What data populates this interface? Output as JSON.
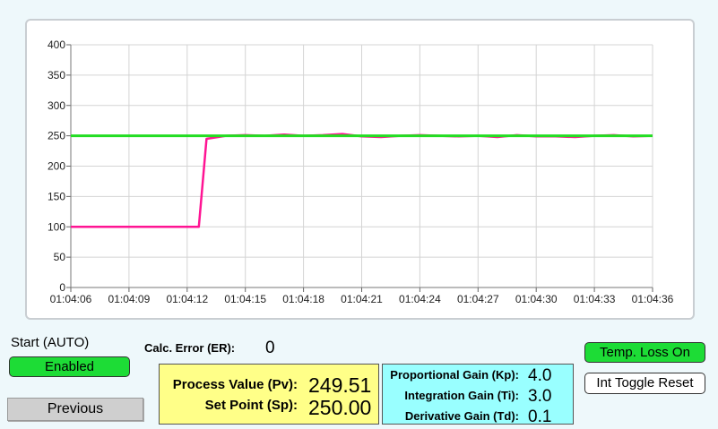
{
  "chart_data": {
    "type": "line",
    "ylim": [
      0,
      400
    ],
    "yticks": [
      "0",
      "50",
      "100",
      "150",
      "200",
      "250",
      "300",
      "350",
      "400"
    ],
    "xticks": [
      "01:04:06",
      "01:04:09",
      "01:04:12",
      "01:04:15",
      "01:04:18",
      "01:04:21",
      "01:04:24",
      "01:04:27",
      "01:04:30",
      "01:04:33",
      "01:04:36"
    ],
    "grid": true,
    "series": [
      {
        "color": "#ff1493",
        "x": [
          0,
          1,
          2,
          3,
          4,
          5,
          6,
          6.6,
          7,
          8,
          9,
          10,
          11,
          12,
          13,
          14,
          15,
          16,
          17,
          18,
          19,
          20,
          21,
          22,
          23,
          24,
          25,
          26,
          27,
          28,
          29,
          30
        ],
        "y": [
          100,
          100,
          100,
          100,
          100,
          100,
          100,
          100,
          245,
          250,
          251,
          250,
          252,
          250,
          251,
          253,
          249,
          248,
          250,
          251,
          250,
          249,
          250,
          248,
          251,
          249,
          249,
          248,
          250,
          251,
          249,
          250
        ]
      },
      {
        "color": "#22dd22",
        "x": [
          0,
          30
        ],
        "y": [
          250,
          250
        ]
      }
    ]
  },
  "start": {
    "label": "Start (AUTO)",
    "enabled_button": "Enabled",
    "enabled_color": "#1ddc36"
  },
  "previous_button": "Previous",
  "calc_error": {
    "label": "Calc. Error (ER):",
    "value": "0"
  },
  "process": {
    "pv_label": "Process Value (Pv):",
    "pv_value": "249.51",
    "sp_label": "Set Point (Sp):",
    "sp_value": "250.00"
  },
  "gains": {
    "kp_label": "Proportional Gain (Kp):",
    "kp_value": "4.0",
    "ti_label": "Integration Gain (Ti):",
    "ti_value": "3.0",
    "td_label": "Derivative Gain (Td):",
    "td_value": "0.1"
  },
  "temp_loss_button": "Temp. Loss On",
  "int_toggle_button": "Int Toggle Reset"
}
